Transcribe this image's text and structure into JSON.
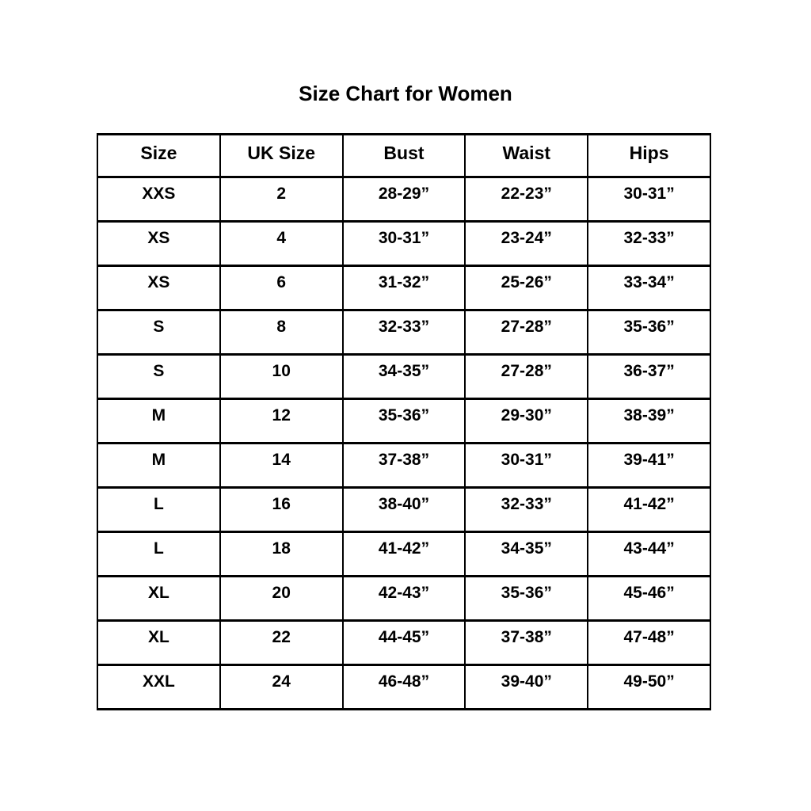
{
  "chart_data": {
    "type": "table",
    "title": "Size Chart for Women",
    "columns": [
      "Size",
      "UK Size",
      "Bust",
      "Waist",
      "Hips"
    ],
    "rows": [
      [
        "XXS",
        "2",
        "28-29”",
        "22-23”",
        "30-31”"
      ],
      [
        "XS",
        "4",
        "30-31”",
        "23-24”",
        "32-33”"
      ],
      [
        "XS",
        "6",
        "31-32”",
        "25-26”",
        "33-34”"
      ],
      [
        "S",
        "8",
        "32-33”",
        "27-28”",
        "35-36”"
      ],
      [
        "S",
        "10",
        "34-35”",
        "27-28”",
        "36-37”"
      ],
      [
        "M",
        "12",
        "35-36”",
        "29-30”",
        "38-39”"
      ],
      [
        "M",
        "14",
        "37-38”",
        "30-31”",
        "39-41”"
      ],
      [
        "L",
        "16",
        "38-40”",
        "32-33”",
        "41-42”"
      ],
      [
        "L",
        "18",
        "41-42”",
        "34-35”",
        "43-44”"
      ],
      [
        "XL",
        "20",
        "42-43”",
        "35-36”",
        "45-46”"
      ],
      [
        "XL",
        "22",
        "44-45”",
        "37-38”",
        "47-48”"
      ],
      [
        "XXL",
        "24",
        "46-48”",
        "39-40”",
        "49-50”"
      ]
    ],
    "layout": {
      "text_color": "#000000",
      "border_color": "#000000",
      "background": "#ffffff",
      "legend": "none",
      "grid": "full-table-borders"
    }
  }
}
